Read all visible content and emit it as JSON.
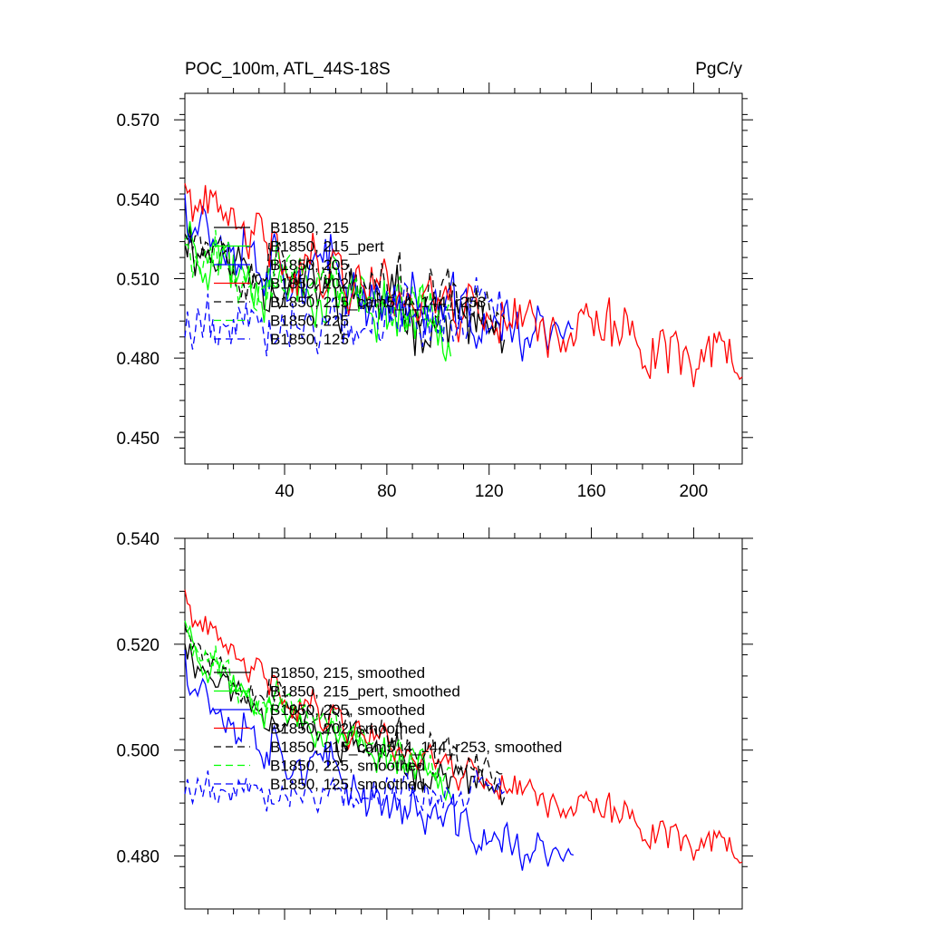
{
  "chart_data": [
    {
      "type": "line",
      "title": "POC_100m, ATL_44S-18S",
      "units": "PgC/y",
      "xlabel": "",
      "ylabel": "",
      "xlim": [
        1,
        219
      ],
      "ylim": [
        0.44,
        0.58
      ],
      "x_ticks": [
        40,
        80,
        120,
        160,
        200
      ],
      "y_ticks": [
        "0.450",
        "0.480",
        "0.510",
        "0.540",
        "0.570"
      ],
      "legend_position": "lower-left",
      "series": [
        {
          "name": "B1850, 215",
          "color": "#000000",
          "dash": "solid",
          "length": 126,
          "start": 0.53,
          "end": 0.49,
          "noise": 0.01,
          "seed": 11
        },
        {
          "name": "B1850, 215_pert",
          "color": "#00ff00",
          "dash": "solid",
          "length": 105,
          "start": 0.53,
          "end": 0.494,
          "noise": 0.01,
          "seed": 23
        },
        {
          "name": "B1850, 205",
          "color": "#0000ff",
          "dash": "solid",
          "length": 153,
          "start": 0.545,
          "end": 0.485,
          "noise": 0.011,
          "seed": 37
        },
        {
          "name": "B1850, 202",
          "color": "#ff0000",
          "dash": "solid",
          "length": 219,
          "start": 0.545,
          "end": 0.48,
          "noise": 0.01,
          "seed": 41
        },
        {
          "name": "B1850, 215_cam5_4_144_r253",
          "color": "#000000",
          "dash": "dashed",
          "length": 126,
          "start": 0.535,
          "end": 0.495,
          "noise": 0.01,
          "seed": 53
        },
        {
          "name": "B1850, 225",
          "color": "#00ff00",
          "dash": "dashed",
          "length": 105,
          "start": 0.528,
          "end": 0.498,
          "noise": 0.01,
          "seed": 67
        },
        {
          "name": "B1850, 125",
          "color": "#0000ff",
          "dash": "dashed",
          "length": 126,
          "start": 0.492,
          "end": 0.497,
          "noise": 0.01,
          "seed": 79
        }
      ]
    },
    {
      "type": "line",
      "title": "",
      "xlabel": "",
      "ylabel": "",
      "xlim": [
        1,
        219
      ],
      "ylim": [
        0.47,
        0.54
      ],
      "x_ticks": [
        40,
        80,
        120,
        160,
        200
      ],
      "y_ticks": [
        "0.480",
        "0.500",
        "0.520",
        "0.540"
      ],
      "legend_position": "lower-left",
      "series": [
        {
          "name": "B1850, 215, smoothed",
          "color": "#000000",
          "dash": "solid",
          "length": 126,
          "start": 0.522,
          "end": 0.492,
          "noise": 0.003,
          "seed": 11
        },
        {
          "name": "B1850, 215_pert, smoothed",
          "color": "#00ff00",
          "dash": "solid",
          "length": 105,
          "start": 0.525,
          "end": 0.495,
          "noise": 0.003,
          "seed": 23
        },
        {
          "name": "B1850, 205, smoothed",
          "color": "#0000ff",
          "dash": "solid",
          "length": 153,
          "start": 0.52,
          "end": 0.478,
          "noise": 0.004,
          "seed": 37
        },
        {
          "name": "B1850, 202, smoothed",
          "color": "#ff0000",
          "dash": "solid",
          "length": 219,
          "start": 0.53,
          "end": 0.481,
          "noise": 0.003,
          "seed": 41
        },
        {
          "name": "B1850, 215_cam5_4_144_r253, smoothed",
          "color": "#000000",
          "dash": "dashed",
          "length": 126,
          "start": 0.526,
          "end": 0.495,
          "noise": 0.003,
          "seed": 53
        },
        {
          "name": "B1850, 225, smoothed",
          "color": "#00ff00",
          "dash": "dashed",
          "length": 105,
          "start": 0.526,
          "end": 0.496,
          "noise": 0.003,
          "seed": 67
        },
        {
          "name": "B1850, 125, smoothed",
          "color": "#0000ff",
          "dash": "dashed",
          "length": 126,
          "start": 0.493,
          "end": 0.492,
          "noise": 0.003,
          "seed": 79
        }
      ]
    }
  ]
}
